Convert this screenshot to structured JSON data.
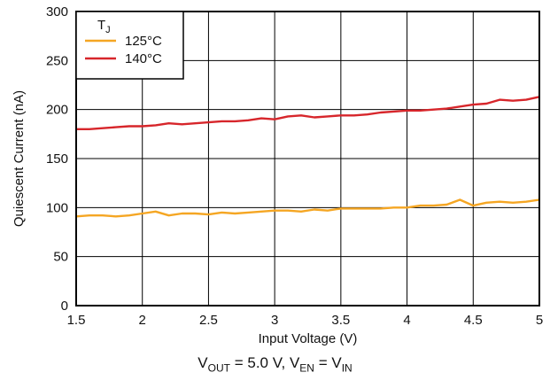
{
  "chart_data": {
    "type": "line",
    "xlabel": "Input Voltage (V)",
    "ylabel": "Quiescent Current (nA)",
    "xlim": [
      1.5,
      5
    ],
    "ylim": [
      0,
      300
    ],
    "xticks": [
      1.5,
      2,
      2.5,
      3,
      3.5,
      4,
      4.5,
      5
    ],
    "xtick_labels": [
      "1.5",
      "2",
      "2.5",
      "3",
      "3.5",
      "4",
      "4.5",
      "5"
    ],
    "yticks": [
      0,
      50,
      100,
      150,
      200,
      250,
      300
    ],
    "ytick_labels": [
      "0",
      "50",
      "100",
      "150",
      "200",
      "250",
      "300"
    ],
    "grid": true,
    "legend_position": "top-left",
    "legend_title": {
      "main": "T",
      "sub": "J"
    },
    "series": [
      {
        "name": "125°C",
        "color": "#f5a623",
        "x": [
          1.5,
          1.6,
          1.7,
          1.8,
          1.9,
          2.0,
          2.1,
          2.2,
          2.3,
          2.4,
          2.5,
          2.6,
          2.7,
          2.8,
          2.9,
          3.0,
          3.1,
          3.2,
          3.3,
          3.4,
          3.5,
          3.6,
          3.7,
          3.8,
          3.9,
          4.0,
          4.1,
          4.2,
          4.3,
          4.4,
          4.5,
          4.6,
          4.7,
          4.8,
          4.9,
          5.0
        ],
        "y": [
          91,
          92,
          92,
          91,
          92,
          94,
          96,
          92,
          94,
          94,
          93,
          95,
          94,
          95,
          96,
          97,
          97,
          96,
          98,
          97,
          99,
          99,
          99,
          99,
          100,
          100,
          102,
          102,
          103,
          108,
          102,
          105,
          106,
          105,
          106,
          108
        ]
      },
      {
        "name": "140°C",
        "color": "#d7262b",
        "x": [
          1.5,
          1.6,
          1.7,
          1.8,
          1.9,
          2.0,
          2.1,
          2.2,
          2.3,
          2.4,
          2.5,
          2.6,
          2.7,
          2.8,
          2.9,
          3.0,
          3.1,
          3.2,
          3.3,
          3.4,
          3.5,
          3.6,
          3.7,
          3.8,
          3.9,
          4.0,
          4.1,
          4.2,
          4.3,
          4.4,
          4.5,
          4.6,
          4.7,
          4.8,
          4.9,
          5.0
        ],
        "y": [
          180,
          180,
          181,
          182,
          183,
          183,
          184,
          186,
          185,
          186,
          187,
          188,
          188,
          189,
          191,
          190,
          193,
          194,
          192,
          193,
          194,
          194,
          195,
          197,
          198,
          199,
          199,
          200,
          201,
          203,
          205,
          206,
          210,
          209,
          210,
          213
        ]
      }
    ]
  },
  "caption": {
    "vout_main": "V",
    "vout_sub": "OUT",
    "vout_value": " = 5.0 V, ",
    "ven_main": "V",
    "ven_sub": "EN",
    "eq": " = ",
    "vin_main": "V",
    "vin_sub": "IN"
  }
}
